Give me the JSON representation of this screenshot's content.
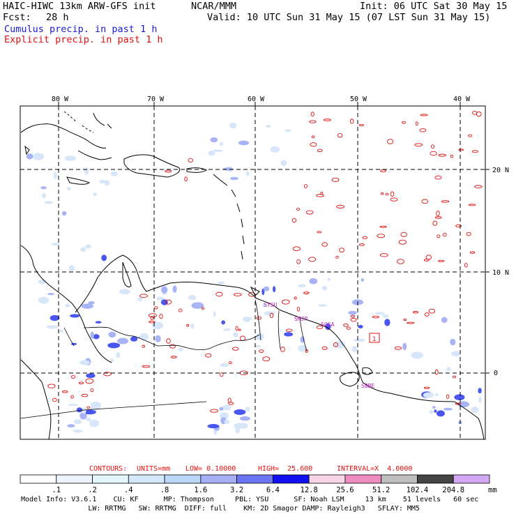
{
  "header": {
    "title_left": "HAIC-HIWC 13km ARW-GFS init",
    "title_center": "NCAR/MMM",
    "init": "Init: 06 UTC Sat 30 May 15",
    "fcst_label": "Fcst:",
    "fcst_value": "28 h",
    "valid": "Valid: 10 UTC Sun 31 May 15 (07 LST Sun 31 May 15)",
    "cumulus": "Cumulus precip. in past 1 h",
    "explicit": "Explicit precip. in past 1 h"
  },
  "colors": {
    "cumulus": "#1a1ad6",
    "explicit": "#e01010",
    "coast": "#000000",
    "grid": "#000000"
  },
  "map": {
    "lon_labels": [
      "80 W",
      "70 W",
      "60 W",
      "50 W",
      "40 W"
    ],
    "lat_labels": [
      "20 N",
      "10 N",
      "0"
    ],
    "station_labels": [
      "SYSU",
      "SMJP",
      "SOCA",
      "SBBE"
    ],
    "marker_label": "1"
  },
  "contours_line": {
    "label": "CONTOURS:",
    "units": "UNITS=mm",
    "low": "LOW= 0.10000",
    "high": "HIGH=  25.600",
    "interval": "INTERVAL=X  4.0000"
  },
  "colorbar": {
    "labels": [
      ".1",
      ".2",
      ".4",
      ".8",
      "1.6",
      "3.2",
      "6.4",
      "12.8",
      "25.6",
      "51.2",
      "102.4",
      "204.8"
    ],
    "unit": "mm",
    "colors": [
      "#ffffff",
      "#eef4ff",
      "#e2f6fc",
      "#d4e8fa",
      "#bad6f8",
      "#a6aef6",
      "#6c76f4",
      "#1010f0",
      "#f6d6e6",
      "#f08cc0",
      "#bebebe",
      "#444444",
      "#d2a8f4"
    ]
  },
  "model_info": {
    "line1": "Model Info: V3.6.1    CU: KF      MP: Thompson     PBL: YSU      SF: Noah LSM     13 km    51 levels   60 sec",
    "line2": "                LW: RRTMG   SW: RRTMG  DIFF: full    KM: 2D Smagor DAMP: Rayleigh3   SFLAY: MM5"
  }
}
